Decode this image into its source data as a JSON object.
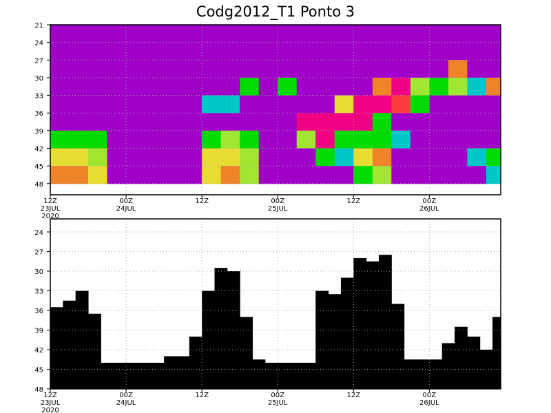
{
  "chart_data": [
    {
      "type": "heatmap",
      "title": "Codg2012_T1 Ponto 3",
      "x": [
        1.5,
        4.5,
        7.5,
        10.5,
        13.5,
        16.5,
        19.5,
        22.5,
        25.5,
        28.5,
        31.5,
        34.5,
        37.5,
        40.5,
        43.5,
        46.5,
        49.5,
        52.5,
        55.5,
        58.5,
        61.5,
        64.5,
        67.5,
        70.5
      ],
      "y": [
        22.5,
        25.5,
        28.5,
        31.5,
        34.5,
        37.5,
        40.5,
        43.5,
        46.5
      ],
      "z": [
        [
          0,
          0,
          0,
          0,
          0,
          0,
          0,
          0,
          0,
          0,
          0,
          0,
          0,
          0,
          0,
          0,
          0,
          0,
          0,
          0,
          0,
          0,
          0,
          0
        ],
        [
          0,
          0,
          0,
          0,
          0,
          0,
          0,
          0,
          0,
          0,
          0,
          0,
          0,
          0,
          0,
          0,
          0,
          0,
          0,
          0,
          0,
          0,
          0,
          0
        ],
        [
          0,
          0,
          0,
          0,
          0,
          0,
          0,
          0,
          0,
          0,
          0,
          0,
          0,
          0,
          0,
          0,
          0,
          0,
          0,
          0,
          0,
          6,
          0,
          0
        ],
        [
          0,
          0,
          0,
          0,
          0,
          0,
          0,
          0,
          0,
          0,
          3,
          0,
          3,
          0,
          0,
          0,
          0,
          6,
          8,
          4,
          3,
          4,
          2,
          6
        ],
        [
          0,
          0,
          0,
          0,
          0,
          0,
          0,
          0,
          2,
          2,
          0,
          0,
          0,
          0,
          0,
          5,
          8,
          8,
          7,
          3,
          0,
          0,
          0,
          0
        ],
        [
          0,
          0,
          0,
          0,
          0,
          0,
          0,
          0,
          0,
          0,
          0,
          0,
          0,
          8,
          8,
          8,
          8,
          3,
          0,
          0,
          0,
          0,
          0,
          0
        ],
        [
          3,
          3,
          3,
          0,
          0,
          0,
          0,
          0,
          3,
          4,
          3,
          0,
          0,
          4,
          8,
          3,
          3,
          3,
          2,
          0,
          0,
          0,
          0,
          0
        ],
        [
          5,
          5,
          4,
          0,
          0,
          0,
          0,
          0,
          5,
          5,
          4,
          0,
          0,
          0,
          3,
          2,
          5,
          6,
          0,
          0,
          0,
          0,
          2,
          3
        ],
        [
          6,
          6,
          5,
          0,
          0,
          0,
          0,
          0,
          5,
          6,
          4,
          0,
          0,
          0,
          0,
          0,
          3,
          4,
          0,
          0,
          0,
          0,
          0,
          2
        ]
      ],
      "colors": [
        "#a000c8",
        "#1e3cff",
        "#00c8c8",
        "#00dc00",
        "#a0e632",
        "#e6dc32",
        "#f08228",
        "#fa3c3c",
        "#f00082"
      ],
      "xlim": [
        0,
        71.3
      ],
      "ylim": [
        21,
        49.9
      ],
      "invert_y": true,
      "grid": true,
      "xticks": [
        {
          "value": 0,
          "label": "12Z\n23JUL\n2020"
        },
        {
          "value": 12,
          "label": "00Z\n24JUL"
        },
        {
          "value": 24,
          "label": "12Z"
        },
        {
          "value": 36,
          "label": "00Z\n25JUL"
        },
        {
          "value": 48,
          "label": "12Z"
        },
        {
          "value": 60,
          "label": "00Z\n26JUL"
        }
      ],
      "yticks": [
        21,
        24,
        27,
        30,
        33,
        36,
        39,
        42,
        45,
        48
      ]
    },
    {
      "type": "bar",
      "color": "#000000",
      "x": [
        1,
        3,
        5,
        7,
        9,
        11,
        13,
        15,
        17,
        19,
        21,
        23,
        25,
        27,
        29,
        31,
        33,
        35,
        37,
        39,
        41,
        43,
        45,
        47,
        49,
        51,
        53,
        55,
        57,
        59,
        61,
        63,
        65,
        67,
        69,
        71
      ],
      "values": [
        35.5,
        34.5,
        33,
        36.5,
        44,
        44,
        44,
        44,
        44,
        43,
        43,
        40,
        33,
        29.5,
        30,
        37,
        43.5,
        44,
        44,
        44,
        44,
        33,
        33.5,
        31,
        28,
        28.5,
        27.5,
        35,
        43.5,
        43.5,
        43.5,
        41,
        38.5,
        40,
        42,
        37
      ],
      "xlim": [
        0,
        71.3
      ],
      "ylim": [
        22,
        48
      ],
      "invert_y": true,
      "grid": true,
      "xticks": [
        {
          "value": 0,
          "label": "12Z\n23JUL\n2020"
        },
        {
          "value": 12,
          "label": "00Z\n24JUL"
        },
        {
          "value": 24,
          "label": "12Z"
        },
        {
          "value": 36,
          "label": "00Z\n25JUL"
        },
        {
          "value": 48,
          "label": "12Z"
        },
        {
          "value": 60,
          "label": "00Z\n26JUL"
        }
      ],
      "yticks": [
        24,
        27,
        30,
        33,
        36,
        39,
        42,
        45,
        48
      ]
    }
  ]
}
